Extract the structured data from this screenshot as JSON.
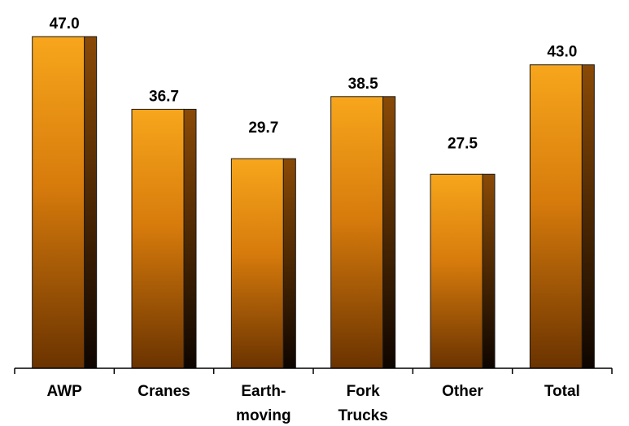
{
  "chart_data": {
    "type": "bar",
    "categories": [
      [
        "AWP"
      ],
      [
        "Cranes"
      ],
      [
        "Earth-",
        "moving"
      ],
      [
        "Fork",
        "Trucks"
      ],
      [
        "Other"
      ],
      [
        "Total"
      ]
    ],
    "values": [
      47.0,
      36.7,
      29.7,
      38.5,
      27.5,
      43.0
    ],
    "value_labels": [
      "47.0",
      "36.7",
      "29.7",
      "38.5",
      "27.5",
      "43.0"
    ],
    "ylim": [
      0,
      47.0
    ],
    "grid": false,
    "legend": "none",
    "colors": {
      "bar_top": "#f7a61c",
      "bar_bottom": "#6a3300",
      "side_top": "#8a4a06",
      "side_bottom": "#0e0500",
      "outline": "#1a1a1a",
      "axis": "#000000"
    }
  }
}
